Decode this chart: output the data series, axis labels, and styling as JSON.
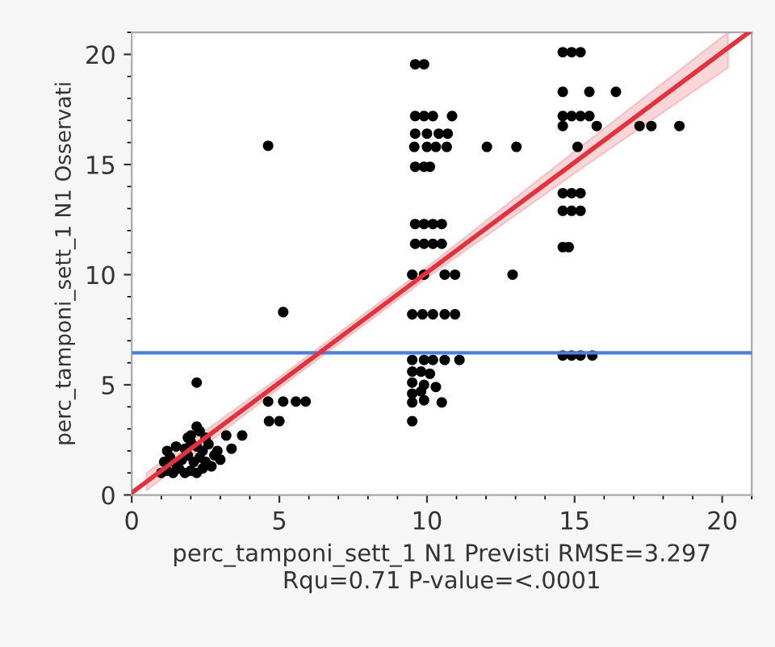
{
  "chart_data": {
    "type": "scatter",
    "xlabel": "perc_tamponi_sett_1 N1 Previsti RMSE=3.297\nRqu=0.71 P-value=<.0001",
    "ylabel": "perc_tamponi_sett_1 N1 Osservati",
    "xlim": [
      0,
      21
    ],
    "ylim": [
      0,
      21
    ],
    "xticks": [
      0,
      5,
      10,
      15,
      20
    ],
    "yticks": [
      0,
      5,
      10,
      15,
      20
    ],
    "grid": false,
    "legend": false,
    "ref_lines": [
      {
        "axis": "y",
        "value": 6.45,
        "color": "#4a7fe0"
      }
    ],
    "series": [
      {
        "color": "#000000",
        "marker": "circle",
        "x": [
          1.0,
          1.2,
          1.4,
          1.6,
          1.8,
          2.0,
          2.2,
          2.4,
          1.1,
          1.3,
          1.5,
          1.7,
          1.9,
          2.1,
          2.3,
          2.5,
          2.7,
          1.2,
          1.5,
          1.8,
          2.0,
          2.2,
          2.4,
          2.6,
          2.9,
          2.0,
          2.3,
          2.5,
          2.8,
          3.0,
          1.9,
          2.2,
          2.2,
          3.74,
          3.38,
          3.2,
          4.62,
          5.13,
          4.62,
          5.13,
          5.56,
          5.89,
          4.65,
          5.0,
          9.6,
          9.9,
          9.6,
          9.9,
          10.2,
          10.85,
          9.6,
          10.0,
          10.4,
          10.7,
          9.57,
          10.67,
          12.03,
          13.03,
          10.0,
          10.3,
          9.6,
          9.9,
          10.1,
          9.6,
          9.9,
          10.2,
          10.5,
          9.6,
          9.9,
          10.2,
          10.5,
          9.5,
          9.9,
          10.6,
          10.95,
          12.9,
          9.5,
          9.85,
          10.2,
          10.6,
          10.95,
          9.5,
          9.9,
          10.2,
          10.6,
          11.1,
          9.5,
          9.8,
          10.1,
          9.5,
          9.9,
          9.5,
          9.8,
          10.3,
          9.5,
          9.9,
          10.5,
          9.5,
          14.6,
          14.9,
          15.2,
          14.6,
          15.5,
          16.4,
          14.6,
          14.9,
          15.2,
          15.5,
          14.6,
          15.75,
          17.2,
          17.6,
          18.55,
          15.1,
          14.6,
          14.9,
          15.2,
          14.6,
          14.9,
          15.2,
          14.6,
          14.8,
          14.6,
          14.9,
          15.2,
          15.6
        ],
        "values": [
          1.0,
          1.1,
          1.0,
          1.2,
          1.0,
          1.1,
          1.0,
          1.2,
          1.5,
          1.7,
          1.4,
          1.6,
          1.8,
          1.5,
          1.7,
          1.5,
          1.3,
          2.0,
          2.2,
          2.1,
          2.4,
          2.2,
          2.0,
          2.3,
          2.0,
          2.7,
          2.9,
          2.6,
          1.8,
          1.6,
          2.6,
          3.1,
          5.1,
          2.7,
          2.1,
          2.7,
          15.85,
          8.3,
          4.24,
          4.24,
          4.24,
          4.24,
          3.35,
          3.35,
          19.55,
          19.55,
          17.2,
          17.2,
          17.2,
          17.2,
          16.4,
          16.4,
          16.4,
          16.4,
          15.8,
          15.8,
          15.8,
          15.8,
          15.8,
          15.8,
          14.9,
          14.9,
          14.9,
          12.3,
          12.3,
          12.3,
          12.3,
          11.4,
          11.4,
          11.4,
          11.4,
          10.0,
          10.0,
          10.0,
          10.0,
          10.0,
          8.2,
          8.2,
          8.2,
          8.2,
          8.2,
          6.13,
          6.13,
          6.13,
          6.13,
          6.13,
          5.6,
          5.6,
          5.5,
          5.1,
          5.0,
          4.6,
          4.7,
          4.9,
          4.2,
          4.3,
          4.2,
          3.35,
          20.1,
          20.1,
          20.1,
          18.3,
          18.3,
          18.3,
          17.2,
          17.2,
          17.2,
          17.2,
          16.75,
          16.75,
          16.75,
          16.75,
          16.75,
          15.8,
          13.7,
          13.7,
          13.7,
          12.9,
          12.9,
          12.9,
          11.25,
          11.25,
          6.33,
          6.33,
          6.33,
          6.33
        ]
      },
      {
        "type": "line",
        "color": "#e8303a",
        "marker": "none",
        "x": [
          0,
          0.5,
          5,
          10,
          15,
          20.2,
          20.9
        ],
        "values": [
          0.1,
          0.6,
          5.1,
          10.1,
          15.1,
          20.3,
          21.0
        ],
        "lower": [
          null,
          0.2,
          4.85,
          9.85,
          14.6,
          19.4,
          null
        ],
        "upper": [
          null,
          1.0,
          5.35,
          10.35,
          15.6,
          21.0,
          null
        ]
      }
    ]
  }
}
